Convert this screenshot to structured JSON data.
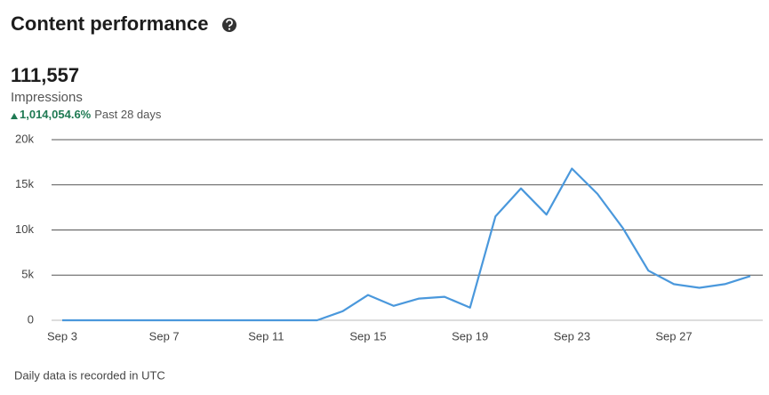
{
  "header": {
    "title": "Content performance",
    "metric_value": "111,557",
    "metric_name": "Impressions",
    "change": "1,014,054.6%",
    "period": "Past 28 days"
  },
  "footer": "Daily data is recorded in UTC",
  "chart_data": {
    "type": "line",
    "categories": [
      "Sep 3",
      null,
      null,
      null,
      "Sep 7",
      null,
      null,
      null,
      "Sep 11",
      null,
      null,
      null,
      "Sep 15",
      null,
      null,
      null,
      "Sep 19",
      null,
      null,
      null,
      "Sep 23",
      null,
      null,
      null,
      "Sep 27",
      null,
      null,
      null
    ],
    "series": [
      {
        "name": "Impressions",
        "color": "#4a98dc",
        "values": [
          0,
          0,
          0,
          0,
          0,
          0,
          0,
          0,
          0,
          0,
          0,
          1000,
          2800,
          1600,
          2400,
          2600,
          1400,
          11500,
          14600,
          11700,
          16800,
          14000,
          10200,
          5500,
          4000,
          3600,
          4000,
          4900
        ]
      }
    ],
    "ylim": [
      0,
      20000
    ],
    "yticks": [
      0,
      {
        "value": 5000,
        "label": "5k"
      },
      {
        "value": 10000,
        "label": "10k"
      },
      {
        "value": 15000,
        "label": "15k"
      },
      {
        "value": 20000,
        "label": "20k"
      }
    ],
    "grid": true
  }
}
